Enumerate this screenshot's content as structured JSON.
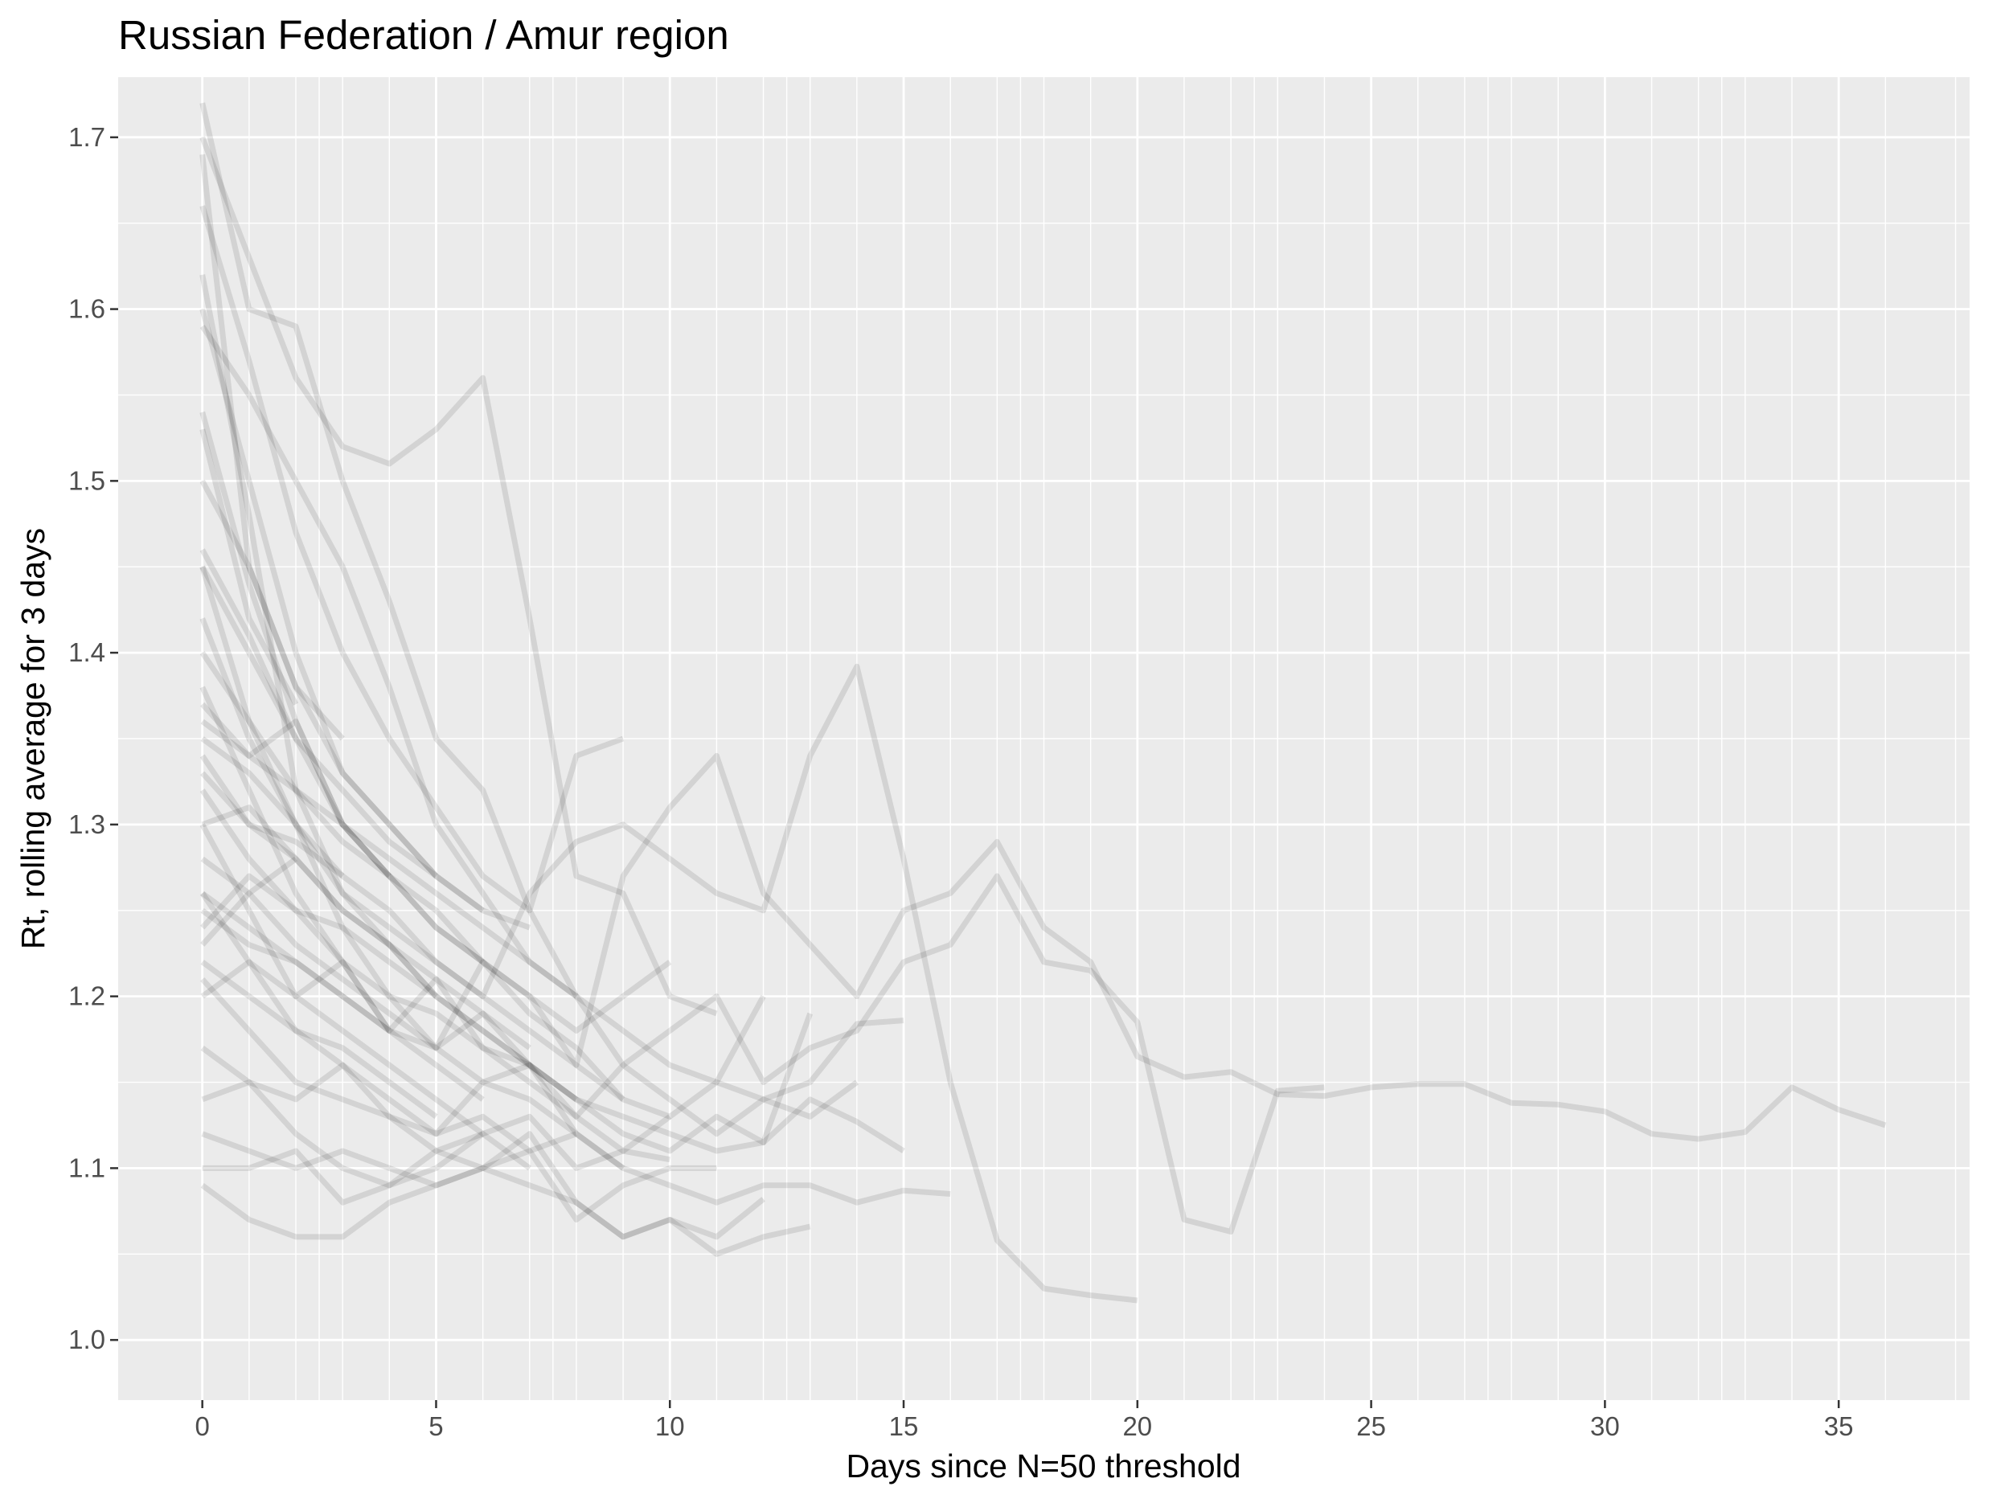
{
  "chart_data": {
    "type": "line",
    "title": "Russian Federation / Amur region",
    "xlabel": "Days since N=50 threshold",
    "ylabel": "Rt, rolling average for 3 days",
    "xlim": [
      -1.8,
      37.8
    ],
    "ylim": [
      0.965,
      1.735
    ],
    "x_ticks": [
      0,
      5,
      10,
      15,
      20,
      25,
      30,
      35
    ],
    "y_ticks": [
      1.0,
      1.1,
      1.2,
      1.3,
      1.4,
      1.5,
      1.6,
      1.7
    ],
    "y_tick_labels": [
      "1.0",
      "1.1",
      "1.2",
      "1.3",
      "1.4",
      "1.5",
      "1.6",
      "1.7"
    ],
    "grid": true,
    "panel_background": "#ebebeb",
    "grid_color": "#ffffff",
    "line_color": "#000000",
    "line_alpha": 0.1,
    "series": [
      {
        "x": [
          0,
          1,
          2,
          3,
          4,
          5,
          6,
          7,
          8,
          9,
          10,
          11,
          12,
          13,
          14,
          15,
          16,
          17,
          18,
          19,
          20,
          21,
          22,
          23,
          24,
          25,
          26,
          27,
          28,
          29,
          30,
          31,
          32,
          33,
          34,
          35,
          36
        ],
        "y": [
          1.45,
          1.36,
          1.3,
          1.24,
          1.2,
          1.17,
          1.22,
          1.2,
          1.16,
          1.27,
          1.31,
          1.34,
          1.26,
          1.23,
          1.2,
          1.25,
          1.26,
          1.29,
          1.24,
          1.22,
          1.165,
          1.153,
          1.156,
          1.143,
          1.142,
          1.147,
          1.149,
          1.149,
          1.138,
          1.137,
          1.133,
          1.12,
          1.117,
          1.121,
          1.147,
          1.134,
          1.125
        ]
      },
      {
        "x": [
          0,
          1,
          2,
          3,
          4,
          5,
          6,
          7,
          8,
          9,
          10,
          11,
          12,
          13,
          14,
          15,
          16,
          17,
          18,
          19,
          20,
          21,
          22,
          23,
          24
        ],
        "y": [
          1.38,
          1.32,
          1.26,
          1.22,
          1.18,
          1.21,
          1.17,
          1.15,
          1.13,
          1.16,
          1.18,
          1.2,
          1.15,
          1.17,
          1.18,
          1.22,
          1.23,
          1.27,
          1.22,
          1.215,
          1.185,
          1.07,
          1.063,
          1.145,
          1.147
        ]
      },
      {
        "x": [
          0,
          1,
          2,
          3,
          4,
          5,
          6,
          7,
          8,
          9,
          10,
          11,
          12,
          13,
          14,
          15,
          16,
          17,
          18,
          19,
          20
        ],
        "y": [
          1.62,
          1.48,
          1.32,
          1.26,
          1.24,
          1.22,
          1.2,
          1.26,
          1.29,
          1.3,
          1.28,
          1.26,
          1.25,
          1.34,
          1.392,
          1.28,
          1.15,
          1.058,
          1.03,
          1.026,
          1.023
        ]
      },
      {
        "x": [
          0,
          1,
          2,
          3,
          4,
          5,
          6,
          7,
          8,
          9,
          10,
          11,
          12,
          13,
          14,
          15
        ],
        "y": [
          1.72,
          1.6,
          1.59,
          1.5,
          1.43,
          1.35,
          1.32,
          1.25,
          1.2,
          1.16,
          1.14,
          1.12,
          1.14,
          1.15,
          1.184,
          1.186
        ]
      },
      {
        "x": [
          0,
          1,
          2,
          3,
          4,
          5,
          6,
          7,
          8,
          9,
          10,
          11,
          12,
          13,
          14,
          15
        ],
        "y": [
          1.3,
          1.25,
          1.2,
          1.22,
          1.18,
          1.17,
          1.19,
          1.16,
          1.14,
          1.12,
          1.11,
          1.13,
          1.115,
          1.14,
          1.127,
          1.11
        ]
      },
      {
        "x": [
          0,
          1,
          2,
          3,
          4,
          5,
          6,
          7,
          8,
          9,
          10,
          11,
          12,
          13,
          14,
          15,
          16
        ],
        "y": [
          1.21,
          1.18,
          1.15,
          1.14,
          1.13,
          1.12,
          1.15,
          1.16,
          1.12,
          1.1,
          1.09,
          1.08,
          1.09,
          1.09,
          1.08,
          1.087,
          1.085
        ]
      },
      {
        "x": [
          0,
          1,
          2,
          3,
          4,
          5,
          6,
          7,
          8,
          9,
          10,
          11,
          12,
          13,
          14
        ],
        "y": [
          1.59,
          1.55,
          1.5,
          1.45,
          1.38,
          1.3,
          1.26,
          1.22,
          1.2,
          1.18,
          1.16,
          1.15,
          1.14,
          1.13,
          1.15
        ]
      },
      {
        "x": [
          0,
          1,
          2,
          3,
          4,
          5,
          6,
          7,
          8,
          9,
          10,
          11,
          12,
          13
        ],
        "y": [
          1.26,
          1.22,
          1.18,
          1.16,
          1.13,
          1.11,
          1.1,
          1.12,
          1.08,
          1.06,
          1.07,
          1.05,
          1.06,
          1.066
        ]
      },
      {
        "x": [
          0,
          1,
          2,
          3,
          4,
          5,
          6,
          7,
          8,
          9,
          10,
          11,
          12,
          13
        ],
        "y": [
          1.33,
          1.3,
          1.28,
          1.25,
          1.23,
          1.2,
          1.18,
          1.16,
          1.14,
          1.13,
          1.12,
          1.11,
          1.115,
          1.19
        ]
      },
      {
        "x": [
          0,
          1,
          2,
          3,
          4,
          5,
          6,
          7,
          8,
          9,
          10,
          11,
          12
        ],
        "y": [
          1.46,
          1.41,
          1.35,
          1.3,
          1.27,
          1.24,
          1.22,
          1.19,
          1.17,
          1.14,
          1.13,
          1.15,
          1.2
        ]
      },
      {
        "x": [
          0,
          1,
          2,
          3,
          4,
          5,
          6,
          7,
          8,
          9,
          10,
          11,
          12
        ],
        "y": [
          1.09,
          1.07,
          1.06,
          1.06,
          1.08,
          1.09,
          1.1,
          1.09,
          1.08,
          1.06,
          1.07,
          1.06,
          1.082
        ]
      },
      {
        "x": [
          0,
          1,
          2,
          3,
          4,
          5,
          6,
          7,
          8,
          9,
          10,
          11
        ],
        "y": [
          1.7,
          1.63,
          1.56,
          1.52,
          1.51,
          1.53,
          1.56,
          1.42,
          1.27,
          1.26,
          1.2,
          1.19
        ]
      },
      {
        "x": [
          0,
          1,
          2,
          3,
          4,
          5,
          6,
          7,
          8,
          9,
          10,
          11
        ],
        "y": [
          1.12,
          1.11,
          1.1,
          1.11,
          1.1,
          1.09,
          1.1,
          1.11,
          1.07,
          1.09,
          1.1,
          1.1
        ]
      },
      {
        "x": [
          0,
          1,
          2,
          3,
          4,
          5,
          6,
          7,
          8,
          9,
          10
        ],
        "y": [
          1.37,
          1.34,
          1.32,
          1.29,
          1.27,
          1.25,
          1.22,
          1.2,
          1.18,
          1.2,
          1.22
        ]
      },
      {
        "x": [
          0,
          1,
          2,
          3,
          4,
          5,
          6,
          7,
          8,
          9,
          10
        ],
        "y": [
          1.24,
          1.27,
          1.25,
          1.22,
          1.2,
          1.19,
          1.17,
          1.16,
          1.13,
          1.11,
          1.13
        ]
      },
      {
        "x": [
          0,
          1,
          2,
          3,
          4,
          5,
          6,
          7,
          8,
          9,
          10
        ],
        "y": [
          1.1,
          1.1,
          1.11,
          1.08,
          1.09,
          1.1,
          1.12,
          1.13,
          1.1,
          1.11,
          1.105
        ]
      },
      {
        "x": [
          0,
          1,
          2,
          3,
          4,
          5,
          6,
          7,
          8,
          9
        ],
        "y": [
          1.66,
          1.57,
          1.47,
          1.4,
          1.35,
          1.31,
          1.27,
          1.25,
          1.34,
          1.35
        ]
      },
      {
        "x": [
          0,
          1,
          2,
          3,
          4,
          5,
          6,
          7,
          8,
          9
        ],
        "y": [
          1.42,
          1.35,
          1.3,
          1.27,
          1.25,
          1.22,
          1.2,
          1.18,
          1.16,
          1.14
        ]
      },
      {
        "x": [
          0,
          1,
          2,
          3,
          4,
          5,
          6,
          7,
          8,
          9
        ],
        "y": [
          1.28,
          1.26,
          1.23,
          1.21,
          1.19,
          1.17,
          1.15,
          1.14,
          1.12,
          1.1
        ]
      },
      {
        "x": [
          0,
          1,
          2,
          3,
          4,
          5,
          6,
          7,
          8
        ],
        "y": [
          1.54,
          1.44,
          1.36,
          1.3,
          1.28,
          1.26,
          1.24,
          1.22,
          1.2
        ]
      },
      {
        "x": [
          0,
          1,
          2,
          3,
          4,
          5,
          6,
          7,
          8
        ],
        "y": [
          1.35,
          1.33,
          1.3,
          1.26,
          1.23,
          1.2,
          1.18,
          1.16,
          1.14
        ]
      },
      {
        "x": [
          0,
          1,
          2,
          3,
          4,
          5,
          6,
          7,
          8
        ],
        "y": [
          1.17,
          1.15,
          1.14,
          1.16,
          1.14,
          1.12,
          1.13,
          1.11,
          1.12
        ]
      },
      {
        "x": [
          0,
          1,
          2,
          3,
          4,
          5,
          6,
          7
        ],
        "y": [
          1.6,
          1.5,
          1.4,
          1.33,
          1.3,
          1.27,
          1.25,
          1.24
        ]
      },
      {
        "x": [
          0,
          1,
          2,
          3,
          4,
          5,
          6,
          7
        ],
        "y": [
          1.3,
          1.31,
          1.28,
          1.25,
          1.23,
          1.21,
          1.19,
          1.17
        ]
      },
      {
        "x": [
          0,
          1,
          2,
          3,
          4,
          5,
          6,
          7
        ],
        "y": [
          1.2,
          1.22,
          1.2,
          1.18,
          1.16,
          1.14,
          1.12,
          1.1
        ]
      },
      {
        "x": [
          0,
          1,
          2,
          3,
          4,
          5,
          6
        ],
        "y": [
          1.5,
          1.45,
          1.38,
          1.33,
          1.3,
          1.27,
          1.25
        ]
      },
      {
        "x": [
          0,
          1,
          2,
          3,
          4,
          5,
          6
        ],
        "y": [
          1.36,
          1.34,
          1.36,
          1.3,
          1.27,
          1.24,
          1.22
        ]
      },
      {
        "x": [
          0,
          1,
          2,
          3,
          4,
          5,
          6
        ],
        "y": [
          1.26,
          1.24,
          1.22,
          1.2,
          1.18,
          1.16,
          1.14
        ]
      },
      {
        "x": [
          0,
          1,
          2,
          3,
          4,
          5,
          6
        ],
        "y": [
          1.14,
          1.15,
          1.12,
          1.1,
          1.09,
          1.11,
          1.12
        ]
      },
      {
        "x": [
          0,
          1,
          2,
          3,
          4,
          5
        ],
        "y": [
          1.45,
          1.4,
          1.35,
          1.32,
          1.29,
          1.27
        ]
      },
      {
        "x": [
          0,
          1,
          2,
          3,
          4,
          5
        ],
        "y": [
          1.32,
          1.28,
          1.25,
          1.24,
          1.22,
          1.2
        ]
      },
      {
        "x": [
          0,
          1,
          2,
          3,
          4,
          5
        ],
        "y": [
          1.22,
          1.2,
          1.18,
          1.17,
          1.15,
          1.13
        ]
      },
      {
        "x": [
          0,
          1,
          2,
          3,
          4
        ],
        "y": [
          1.4,
          1.36,
          1.32,
          1.3,
          1.27
        ]
      },
      {
        "x": [
          0,
          1,
          2,
          3,
          4
        ],
        "y": [
          1.25,
          1.23,
          1.22,
          1.2,
          1.18
        ]
      },
      {
        "x": [
          0,
          1,
          2,
          3
        ],
        "y": [
          1.69,
          1.45,
          1.38,
          1.35
        ]
      },
      {
        "x": [
          0,
          1,
          2,
          3
        ],
        "y": [
          1.34,
          1.3,
          1.29,
          1.27
        ]
      },
      {
        "x": [
          0,
          1,
          2
        ],
        "y": [
          1.53,
          1.42,
          1.37
        ]
      },
      {
        "x": [
          0,
          1,
          2
        ],
        "y": [
          1.23,
          1.26,
          1.28
        ]
      }
    ]
  }
}
